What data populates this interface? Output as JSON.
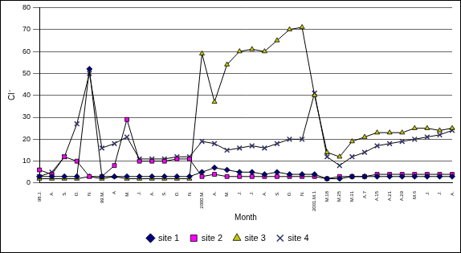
{
  "chart_data": {
    "type": "line",
    "x_label": "Month",
    "y_label": "Cl⁻",
    "categories": [
      "98.J.",
      "A.",
      "S.",
      "O.",
      "N.",
      "99.M.",
      "A",
      "M.",
      "J.",
      "A.",
      "S.",
      "O.",
      "N.",
      "2000.M.",
      "A.",
      "M.",
      "J.",
      "J.",
      "A.",
      "S.",
      "O.",
      "N.",
      "2001.M.1",
      "M.18",
      "M.25",
      "M.31",
      "A.7",
      "A.15",
      "A.21",
      "A.29",
      "M.6",
      "J.",
      "J.",
      "A."
    ],
    "series": [
      {
        "name": "site 1",
        "color": "#000080",
        "marker": "diamond",
        "values": [
          3,
          3,
          3,
          3,
          52,
          3,
          3,
          3,
          3,
          3,
          3,
          3,
          3,
          5,
          7,
          6,
          5,
          5,
          4,
          5,
          4,
          4,
          4,
          2,
          2,
          3,
          3,
          3,
          3,
          3,
          3,
          3,
          3,
          3
        ]
      },
      {
        "name": "site 2",
        "color": "#ff00ff",
        "marker": "square",
        "values": [
          6,
          4,
          12,
          10,
          3,
          3,
          8,
          29,
          10,
          10,
          10,
          11,
          11,
          3,
          4,
          3,
          3,
          3,
          3,
          3,
          3,
          3,
          3,
          2,
          3,
          3,
          3,
          4,
          4,
          4,
          4,
          4,
          4,
          4
        ]
      },
      {
        "name": "site 3",
        "color": "#c8c800",
        "marker": "triangle",
        "values": [
          2,
          2,
          2,
          2,
          3,
          2,
          3,
          2,
          2,
          2,
          2,
          2,
          2,
          59,
          37,
          54,
          60,
          61,
          60,
          65,
          70,
          71,
          40,
          14,
          12,
          19,
          21,
          23,
          23,
          23,
          25,
          25,
          24,
          25
        ]
      },
      {
        "name": "site 4",
        "color": "#333366",
        "marker": "x",
        "values": [
          3,
          5,
          12,
          27,
          50,
          16,
          18,
          21,
          11,
          11,
          11,
          12,
          12,
          19,
          18,
          15,
          16,
          17,
          16,
          18,
          20,
          20,
          41,
          12,
          8,
          12,
          14,
          17,
          18,
          19,
          20,
          21,
          22,
          24
        ]
      }
    ],
    "ylim": [
      0,
      80
    ],
    "yticks": [
      0,
      10,
      20,
      30,
      40,
      50,
      60,
      70,
      80
    ],
    "grid": true,
    "legend": "bottom"
  }
}
